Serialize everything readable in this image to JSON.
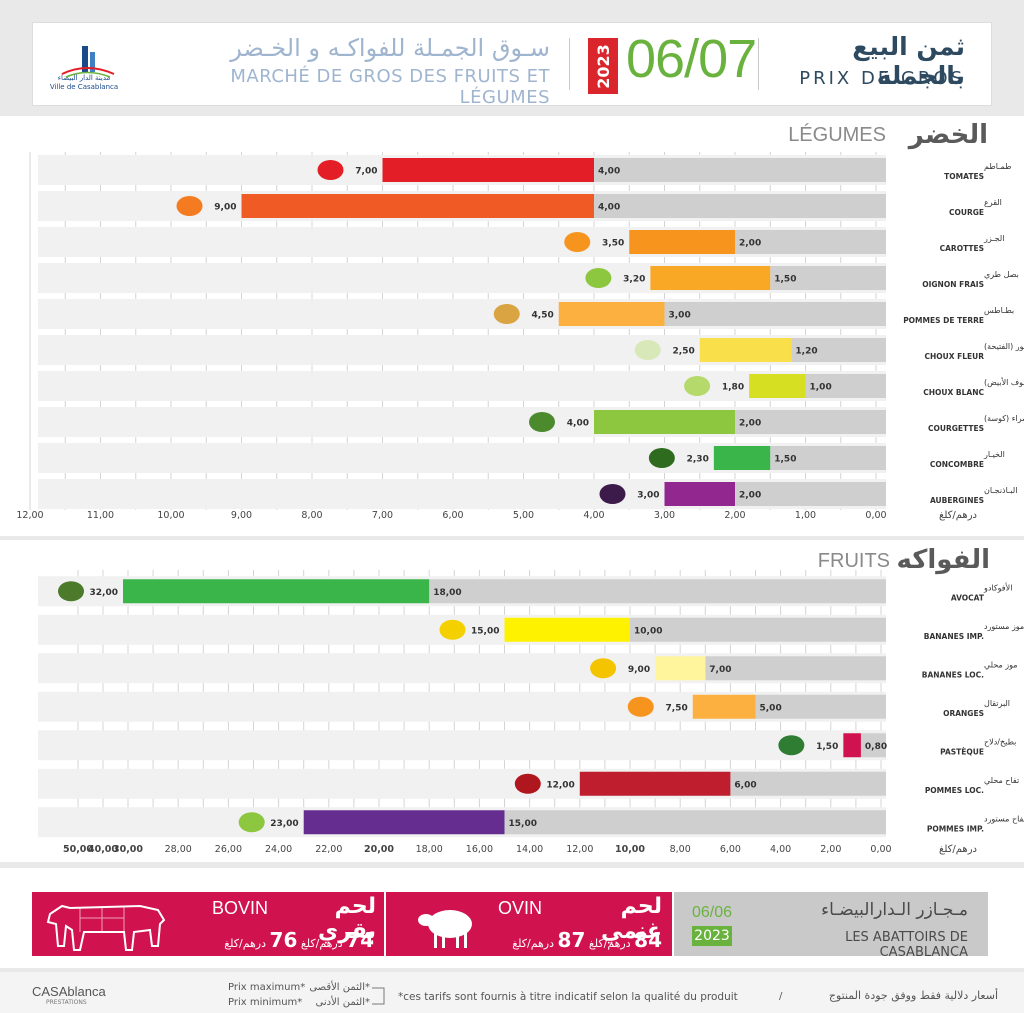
{
  "header": {
    "logo_text_ar": "مدينة الدار البيضاء",
    "logo_text_fr": "Ville de Casablanca",
    "market_ar": "سـوق الجمـلة للفواكـه و الخـضر",
    "market_fr": "MARCHÉ DE GROS DES FRUITS ET LÉGUMES",
    "year": "2023",
    "date": "06/07",
    "title_ar": "ثمن البيع بالجملة",
    "title_fr": "PRIX DE GROS",
    "colors": {
      "date_green": "#6ab23e",
      "year_red": "#d9252b",
      "title_navy": "#2e4a60"
    }
  },
  "chart_data": [
    {
      "type": "bar",
      "orientation": "horizontal-range",
      "title_fr": "LÉGUMES",
      "title_ar": "الخضر",
      "unit": "درهم/كلغ",
      "xlim": [
        0,
        12
      ],
      "x_reversed": true,
      "ticks": [
        "0,00",
        "1,00",
        "2,00",
        "3,00",
        "4,00",
        "5,00",
        "6,00",
        "7,00",
        "8,00",
        "9,00",
        "10,00",
        "11,00",
        "12,00"
      ],
      "items": [
        {
          "ar": "طمـاطم",
          "fr": "TOMATES",
          "max": 7.0,
          "min": 4.0,
          "max_label": "7,00",
          "min_label": "4,00",
          "color": "#e41e26",
          "icon": "tomato-icon"
        },
        {
          "ar": "القرع",
          "fr": "COURGE",
          "max": 9.0,
          "min": 4.0,
          "max_label": "9,00",
          "min_label": "4,00",
          "color": "#f05a24",
          "icon": "pumpkin-icon"
        },
        {
          "ar": "الجـزر",
          "fr": "CAROTTES",
          "max": 3.5,
          "min": 2.0,
          "max_label": "3,50",
          "min_label": "2,00",
          "color": "#f7941d",
          "icon": "carrot-icon"
        },
        {
          "ar": "بصل طري",
          "fr": "OIGNON FRAIS",
          "max": 3.2,
          "min": 1.5,
          "max_label": "3,20",
          "min_label": "1,50",
          "color": "#f9a825",
          "icon": "spring-onion-icon"
        },
        {
          "ar": "بطـاطس",
          "fr": "POMMES DE TERRE",
          "max": 4.5,
          "min": 3.0,
          "max_label": "4,50",
          "min_label": "3,00",
          "color": "#fbb040",
          "icon": "potato-icon"
        },
        {
          "ar": "شفلور (الفتيحة)",
          "fr": "CHOUX FLEUR",
          "max": 2.5,
          "min": 1.2,
          "max_label": "2,50",
          "min_label": "1,20",
          "color": "#f9e04b",
          "icon": "cauliflower-icon"
        },
        {
          "ar": "كرومب (الملفوف الأبيض)",
          "fr": "CHOUX BLANC",
          "max": 1.8,
          "min": 1.0,
          "max_label": "1,80",
          "min_label": "1,00",
          "color": "#d7df23",
          "icon": "cabbage-icon"
        },
        {
          "ar": "قرعة خضراء (كوسة)",
          "fr": "COURGETTES",
          "max": 4.0,
          "min": 2.0,
          "max_label": "4,00",
          "min_label": "2,00",
          "color": "#8dc63f",
          "icon": "zucchini-icon"
        },
        {
          "ar": "الخيـار",
          "fr": "CONCOMBRE",
          "max": 2.3,
          "min": 1.5,
          "max_label": "2,30",
          "min_label": "1,50",
          "color": "#39b54a",
          "icon": "cucumber-icon"
        },
        {
          "ar": "البـاذنجـان",
          "fr": "AUBERGINES",
          "max": 3.0,
          "min": 2.0,
          "max_label": "3,00",
          "min_label": "2,00",
          "color": "#92278f",
          "icon": "eggplant-icon"
        }
      ]
    },
    {
      "type": "bar",
      "orientation": "horizontal-range",
      "title_fr": "FRUITS",
      "title_ar": "الفواكه",
      "unit": "درهم/كلغ",
      "xlim": [
        0,
        50
      ],
      "x_reversed": true,
      "ticks": [
        "0,00",
        "2,00",
        "4,00",
        "6,00",
        "8,00",
        "10,00",
        "12,00",
        "14,00",
        "16,00",
        "18,00",
        "20,00",
        "22,00",
        "24,00",
        "26,00",
        "28,00",
        "30,00",
        "40,00",
        "50,00"
      ],
      "tick_values": [
        0,
        2,
        4,
        6,
        8,
        10,
        12,
        14,
        16,
        18,
        20,
        22,
        24,
        26,
        28,
        30,
        40,
        50
      ],
      "items": [
        {
          "ar": "الأفوكادو",
          "fr": "AVOCAT",
          "max": 32.0,
          "min": 18.0,
          "max_label": "32,00",
          "min_label": "18,00",
          "color": "#39b54a",
          "icon": "avocado-icon"
        },
        {
          "ar": "موز مستورد",
          "fr": "BANANES IMP.",
          "max": 15.0,
          "min": 10.0,
          "max_label": "15,00",
          "min_label": "10,00",
          "color": "#fff200",
          "icon": "banana-bunch-icon"
        },
        {
          "ar": "موز محلي",
          "fr": "BANANES LOC.",
          "max": 9.0,
          "min": 7.0,
          "max_label": "9,00",
          "min_label": "7,00",
          "color": "#fff59d",
          "icon": "banana-icon"
        },
        {
          "ar": "البرتقال",
          "fr": "ORANGES",
          "max": 7.5,
          "min": 5.0,
          "max_label": "7,50",
          "min_label": "5,00",
          "color": "#fbb040",
          "icon": "orange-icon"
        },
        {
          "ar": "بطيخ/دلاح",
          "fr": "PASTÈQUE",
          "max": 1.5,
          "min": 0.8,
          "max_label": "1,50",
          "min_label": "0,80",
          "color": "#d0134f",
          "icon": "watermelon-icon"
        },
        {
          "ar": "تفاح محلي",
          "fr": "POMMES LOC.",
          "max": 12.0,
          "min": 6.0,
          "max_label": "12,00",
          "min_label": "6,00",
          "color": "#be1e2d",
          "icon": "apple-icon"
        },
        {
          "ar": "تفاح مستورد",
          "fr": "POMMES IMP.",
          "max": 23.0,
          "min": 15.0,
          "max_label": "23,00",
          "min_label": "15,00",
          "color": "#662d91",
          "icon": "apples-icon"
        }
      ]
    }
  ],
  "meat": {
    "abattoirs_ar": "مـجـازر الـدارالبيضـاء",
    "abattoirs_fr": "LES ABATTOIRS DE CASABLANCA",
    "date": "06/06",
    "year": "2023",
    "bovin": {
      "ar": "لحم بقري",
      "fr": "BOVIN",
      "max": "74",
      "min": "76",
      "unit": "درهم/كلغ"
    },
    "ovin": {
      "ar": "لحم غنمي",
      "fr": "OVIN",
      "max": "84",
      "min": "87",
      "unit": "درهم/كلغ"
    },
    "colors": {
      "meat_red": "#d0134f",
      "abattoirs_gray": "#c9c9c9"
    }
  },
  "footer": {
    "logo": "CASAblanca",
    "logo_sub": "PRESTATIONS",
    "legend_max_fr": "Prix maximum*",
    "legend_min_fr": "Prix minimum*",
    "legend_max_ar": "*الثمن الأقصى",
    "legend_min_ar": "*الثمن الأدنى",
    "note_fr": "*ces tarifs sont fournis à titre indicatif selon la qualité du produit",
    "sep": "/",
    "note_ar": "أسعار دلالية فقط ووفق جودة المنتوج"
  }
}
